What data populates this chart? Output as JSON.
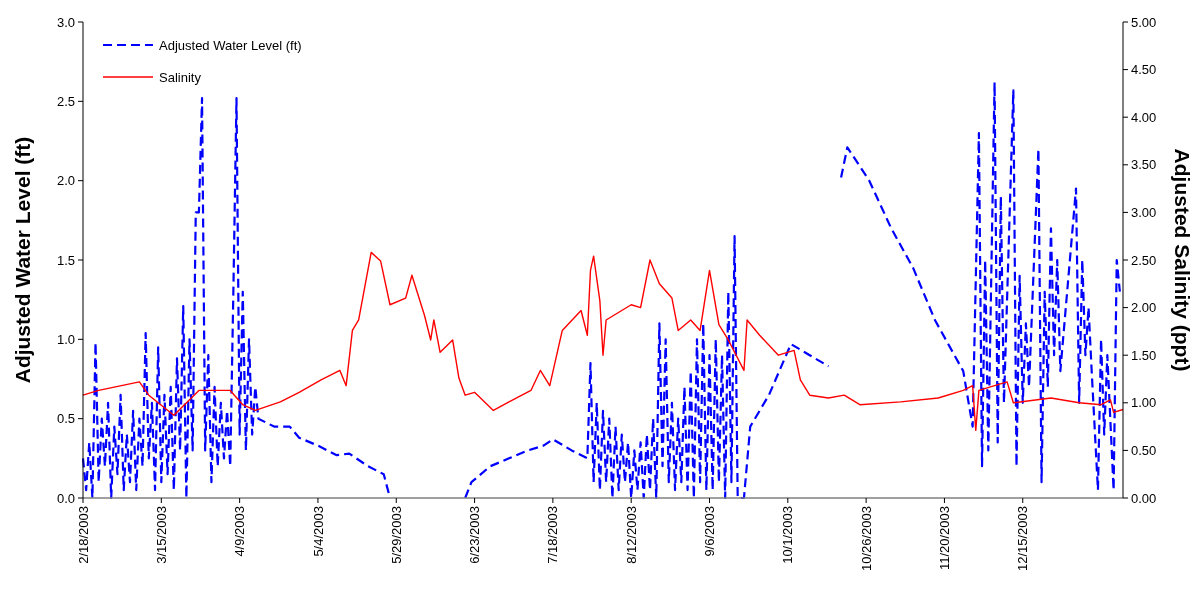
{
  "chart_data": {
    "type": "line",
    "xlabel": null,
    "ylabel": "Adjusted Water Level (ft)",
    "y2label": "Adjusted Salinity (ppt)",
    "legend": "top left",
    "grid": false,
    "xlim": [
      "2003-02-18",
      "2004-01-16"
    ],
    "xticks": [
      {
        "value": "2003-02-18",
        "label": "2/18/2003"
      },
      {
        "value": "2003-03-15",
        "label": "3/15/2003"
      },
      {
        "value": "2003-04-09",
        "label": "4/9/2003"
      },
      {
        "value": "2003-05-04",
        "label": "5/4/2003"
      },
      {
        "value": "2003-05-29",
        "label": "5/29/2003"
      },
      {
        "value": "2003-06-23",
        "label": "6/23/2003"
      },
      {
        "value": "2003-07-18",
        "label": "7/18/2003"
      },
      {
        "value": "2003-08-12",
        "label": "8/12/2003"
      },
      {
        "value": "2003-09-06",
        "label": "9/6/2003"
      },
      {
        "value": "2003-10-01",
        "label": "10/1/2003"
      },
      {
        "value": "2003-10-26",
        "label": "10/26/2003"
      },
      {
        "value": "2003-11-20",
        "label": "11/20/2003"
      },
      {
        "value": "2003-12-15",
        "label": "12/15/2003"
      }
    ],
    "ylim": [
      0,
      3
    ],
    "yticks": [
      {
        "value": 0,
        "label": "0.0"
      },
      {
        "value": 0.5,
        "label": "0.5"
      },
      {
        "value": 1,
        "label": "1.0"
      },
      {
        "value": 1.5,
        "label": "1.5"
      },
      {
        "value": 2,
        "label": "2.0"
      },
      {
        "value": 2.5,
        "label": "2.5"
      },
      {
        "value": 3,
        "label": "3.0"
      }
    ],
    "y2lim": [
      0,
      5
    ],
    "y2ticks": [
      {
        "value": 0,
        "label": "0.00"
      },
      {
        "value": 0.5,
        "label": "0.50"
      },
      {
        "value": 1,
        "label": "1.00"
      },
      {
        "value": 1.5,
        "label": "1.50"
      },
      {
        "value": 2,
        "label": "2.00"
      },
      {
        "value": 2.5,
        "label": "2.50"
      },
      {
        "value": 3,
        "label": "3.00"
      },
      {
        "value": 3.5,
        "label": "3.50"
      },
      {
        "value": 4,
        "label": "4.00"
      },
      {
        "value": 4.5,
        "label": "4.50"
      },
      {
        "value": 5,
        "label": "5.00"
      }
    ],
    "series": [
      {
        "name": "Adjusted Water Level (ft)",
        "color": "#0000ff",
        "line_style": "dashed",
        "x": [
          "2003-02-18",
          "2003-02-19",
          "2003-02-20",
          "2003-02-21",
          "2003-02-22",
          "2003-02-23",
          "2003-02-24",
          "2003-02-25",
          "2003-02-26",
          "2003-02-27",
          "2003-02-28",
          "2003-03-01",
          "2003-03-02",
          "2003-03-03",
          "2003-03-04",
          "2003-03-05",
          "2003-03-06",
          "2003-03-07",
          "2003-03-08",
          "2003-03-09",
          "2003-03-10",
          "2003-03-11",
          "2003-03-12",
          "2003-03-13",
          "2003-03-14",
          "2003-03-15",
          "2003-03-16",
          "2003-03-17",
          "2003-03-18",
          "2003-03-19",
          "2003-03-20",
          "2003-03-21",
          "2003-03-22",
          "2003-03-23",
          "2003-03-24",
          "2003-03-25",
          "2003-03-26",
          "2003-03-27",
          "2003-03-28",
          "2003-03-29",
          "2003-03-30",
          "2003-03-31",
          "2003-04-01",
          "2003-04-02",
          "2003-04-03",
          "2003-04-04",
          "2003-04-05",
          "2003-04-06",
          "2003-04-07",
          "2003-04-08",
          "2003-04-09",
          "2003-04-10",
          "2003-04-11",
          "2003-04-12",
          "2003-04-13",
          "2003-04-14",
          "2003-04-15",
          "2003-04-20",
          "2003-04-25",
          "2003-04-28",
          "2003-05-04",
          "2003-05-10",
          "2003-05-14",
          "2003-05-20",
          "2003-05-25",
          "2003-05-27",
          "2003-05-28",
          "2003-06-20",
          "2003-06-22",
          "2003-06-28",
          "2003-07-04",
          "2003-07-10",
          "2003-07-15",
          "2003-07-18",
          "2003-07-24",
          "2003-07-29",
          "2003-07-30",
          "2003-07-31",
          "2003-08-01",
          "2003-08-02",
          "2003-08-03",
          "2003-08-04",
          "2003-08-05",
          "2003-08-06",
          "2003-08-07",
          "2003-08-08",
          "2003-08-09",
          "2003-08-10",
          "2003-08-11",
          "2003-08-12",
          "2003-08-13",
          "2003-08-14",
          "2003-08-15",
          "2003-08-16",
          "2003-08-17",
          "2003-08-18",
          "2003-08-19",
          "2003-08-20",
          "2003-08-21",
          "2003-08-22",
          "2003-08-23",
          "2003-08-24",
          "2003-08-25",
          "2003-08-26",
          "2003-08-27",
          "2003-08-28",
          "2003-08-29",
          "2003-08-30",
          "2003-08-31",
          "2003-09-01",
          "2003-09-02",
          "2003-09-03",
          "2003-09-04",
          "2003-09-05",
          "2003-09-06",
          "2003-09-07",
          "2003-09-08",
          "2003-09-09",
          "2003-09-10",
          "2003-09-11",
          "2003-09-12",
          "2003-09-13",
          "2003-09-14",
          "2003-09-15",
          "2003-09-17",
          "2003-09-19",
          "2003-09-25",
          "2003-10-02",
          "2003-10-08",
          "2003-10-14",
          "2003-10-15",
          "2003-10-18",
          "2003-10-20",
          "2003-10-27",
          "2003-11-03",
          "2003-11-10",
          "2003-11-17",
          "2003-11-26",
          "2003-11-29",
          "2003-12-01",
          "2003-12-02",
          "2003-12-03",
          "2003-12-04",
          "2003-12-06",
          "2003-12-07",
          "2003-12-08",
          "2003-12-09",
          "2003-12-12",
          "2003-12-13",
          "2003-12-14",
          "2003-12-15",
          "2003-12-16",
          "2003-12-17",
          "2003-12-20",
          "2003-12-21",
          "2003-12-22",
          "2003-12-23",
          "2003-12-24",
          "2003-12-25",
          "2003-12-26",
          "2003-12-27",
          "2004-01-01",
          "2004-01-02",
          "2004-01-03",
          "2004-01-04",
          "2004-01-05",
          "2004-01-06",
          "2004-01-08",
          "2004-01-09",
          "2004-01-10",
          "2004-01-11",
          "2004-01-13",
          "2004-01-14",
          "2004-01-15"
        ],
        "values": [
          0.25,
          0.05,
          0.35,
          0.0,
          0.98,
          0.1,
          0.5,
          0.2,
          0.6,
          0.0,
          0.45,
          0.15,
          0.65,
          0.05,
          0.4,
          0.1,
          0.55,
          0.05,
          0.5,
          0.2,
          1.04,
          0.25,
          0.6,
          0.05,
          0.95,
          0.1,
          0.65,
          0.15,
          0.7,
          0.05,
          0.88,
          0.3,
          1.21,
          0.0,
          1.0,
          0.3,
          1.8,
          1.8,
          2.52,
          0.3,
          0.9,
          0.1,
          0.7,
          0.2,
          0.6,
          0.25,
          0.55,
          0.2,
          1.3,
          2.52,
          0.4,
          1.3,
          0.3,
          1.0,
          0.4,
          0.7,
          0.5,
          0.45,
          0.45,
          0.38,
          0.33,
          0.27,
          0.28,
          0.2,
          0.15,
          0.0,
          null,
          0.0,
          0.1,
          0.2,
          0.25,
          0.3,
          0.33,
          0.37,
          0.3,
          0.25,
          0.85,
          0.1,
          0.6,
          0.05,
          0.55,
          0.1,
          0.5,
          0.0,
          0.45,
          0.05,
          0.4,
          0.1,
          0.35,
          0.0,
          0.3,
          0.05,
          0.35,
          0.0,
          0.4,
          0.05,
          0.5,
          0.0,
          1.1,
          0.2,
          1.0,
          0.1,
          0.6,
          0.05,
          0.5,
          0.1,
          0.7,
          0.05,
          0.8,
          0.0,
          1.0,
          0.1,
          1.1,
          0.05,
          0.9,
          0.05,
          1.0,
          0.1,
          0.9,
          0.0,
          1.3,
          0.1,
          1.65,
          0.0,
          0.0,
          0.45,
          0.65,
          0.97,
          0.9,
          0.83,
          null,
          2.02,
          2.21,
          2.0,
          1.7,
          1.45,
          1.12,
          0.8,
          0.45,
          2.3,
          0.2,
          1.5,
          0.3,
          2.62,
          0.35,
          1.9,
          0.6,
          2.57,
          0.2,
          1.4,
          0.6,
          1.1,
          0.7,
          2.2,
          0.1,
          1.3,
          0.7,
          1.7,
          0.9,
          1.5,
          0.8,
          1.95,
          0.6,
          1.5,
          0.9,
          1.2,
          0.8,
          0.05,
          1.0,
          0.4,
          0.9,
          0.05,
          1.5,
          1.3
        ]
      },
      {
        "name": "Salinity",
        "color": "#ff0000",
        "line_style": "solid",
        "axis": "y2",
        "x": [
          "2003-02-18",
          "2003-02-23",
          "2003-03-08",
          "2003-03-11",
          "2003-03-19",
          "2003-03-27",
          "2003-04-06",
          "2003-04-10",
          "2003-04-14",
          "2003-04-22",
          "2003-04-28",
          "2003-05-05",
          "2003-05-11",
          "2003-05-13",
          "2003-05-15",
          "2003-05-17",
          "2003-05-21",
          "2003-05-24",
          "2003-05-27",
          "2003-06-01",
          "2003-06-03",
          "2003-06-07",
          "2003-06-09",
          "2003-06-10",
          "2003-06-12",
          "2003-06-16",
          "2003-06-18",
          "2003-06-20",
          "2003-06-23",
          "2003-06-29",
          "2003-07-04",
          "2003-07-11",
          "2003-07-14",
          "2003-07-17",
          "2003-07-21",
          "2003-07-27",
          "2003-07-29",
          "2003-07-30",
          "2003-07-31",
          "2003-08-02",
          "2003-08-03",
          "2003-08-04",
          "2003-08-12",
          "2003-08-15",
          "2003-08-18",
          "2003-08-21",
          "2003-08-25",
          "2003-08-27",
          "2003-08-31",
          "2003-09-03",
          "2003-09-06",
          "2003-09-09",
          "2003-09-12",
          "2003-09-17",
          "2003-09-18",
          "2003-09-22",
          "2003-09-28",
          "2003-10-03",
          "2003-10-05",
          "2003-10-08",
          "2003-10-14",
          "2003-10-19",
          "2003-10-24",
          "2003-11-06",
          "2003-11-18",
          "2003-11-26",
          "2003-11-29",
          "2003-11-30",
          "2003-12-01",
          "2003-12-10",
          "2003-12-12",
          "2003-12-24",
          "2004-01-02",
          "2004-01-09",
          "2004-01-12",
          "2004-01-13",
          "2004-01-16"
        ],
        "values": [
          1.08,
          1.13,
          1.22,
          1.08,
          0.87,
          1.13,
          1.13,
          0.98,
          0.92,
          1.01,
          1.11,
          1.24,
          1.34,
          1.18,
          1.76,
          1.87,
          2.58,
          2.49,
          2.03,
          2.1,
          2.34,
          1.92,
          1.66,
          1.87,
          1.53,
          1.66,
          1.26,
          1.08,
          1.11,
          0.92,
          1.01,
          1.13,
          1.34,
          1.18,
          1.76,
          1.97,
          1.71,
          2.39,
          2.54,
          2.07,
          1.5,
          1.87,
          2.03,
          2.0,
          2.5,
          2.25,
          2.1,
          1.76,
          1.87,
          1.76,
          2.39,
          1.82,
          1.66,
          1.34,
          1.87,
          1.71,
          1.5,
          1.55,
          1.24,
          1.08,
          1.05,
          1.08,
          0.98,
          1.01,
          1.05,
          1.13,
          1.18,
          0.71,
          1.13,
          1.22,
          1.0,
          1.05,
          1.0,
          0.98,
          1.03,
          0.9,
          0.93
        ]
      }
    ]
  }
}
